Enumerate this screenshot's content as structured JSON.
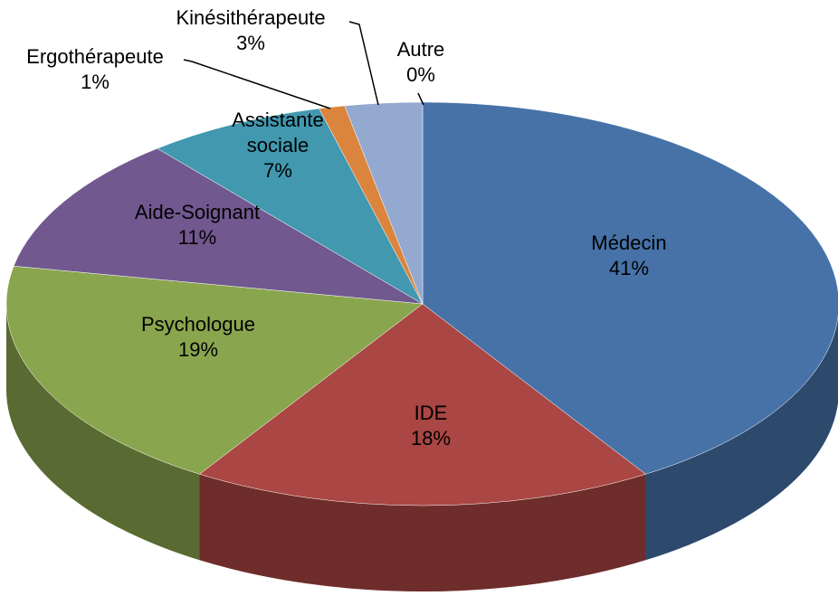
{
  "chart_data": {
    "type": "pie",
    "categories": [
      "Médecin",
      "IDE",
      "Psychologue",
      "Aide-Soignant",
      "Assistante sociale",
      "Ergothérapeute",
      "Kinésithérapeute",
      "Autre"
    ],
    "values": [
      41,
      18,
      19,
      11,
      7,
      1,
      3,
      0
    ],
    "value_labels": [
      "41%",
      "18%",
      "19%",
      "11%",
      "7%",
      "1%",
      "3%",
      "0%"
    ],
    "colors": [
      "#4672a8",
      "#aa4643",
      "#89a54e",
      "#71588f",
      "#4198af",
      "#db843d",
      "#93a9cf",
      "#d19392"
    ]
  }
}
